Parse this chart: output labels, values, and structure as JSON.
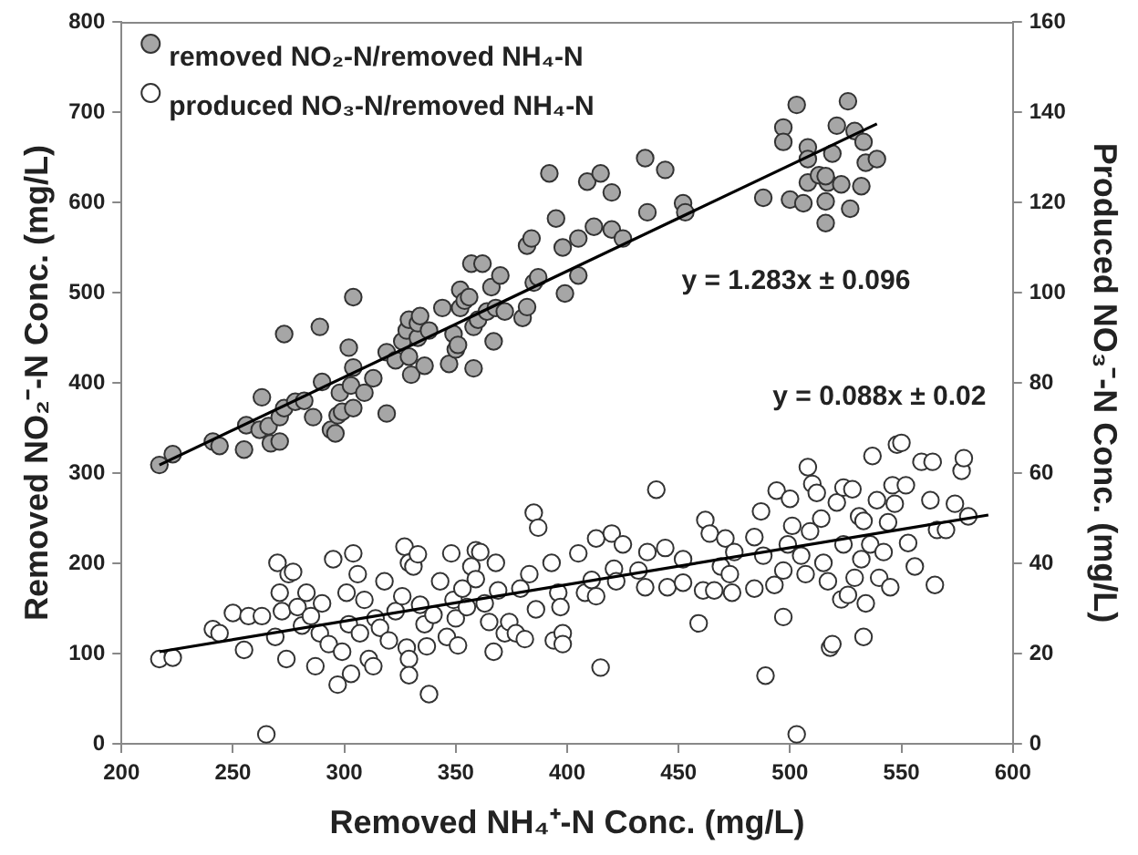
{
  "chart_data": {
    "type": "scatter",
    "xlabel": "Removed NH₄⁺-N Conc. (mg/L)",
    "ylabel": "Removed NO₂⁻-N Conc. (mg/L)",
    "y2label": "Produced NO₃⁻-N Conc. (mg/L)",
    "xlim": [
      200,
      600
    ],
    "xticks": [
      200,
      250,
      300,
      350,
      400,
      450,
      500,
      550,
      600
    ],
    "ylim": [
      0,
      800
    ],
    "yticks": [
      0,
      100,
      200,
      300,
      400,
      500,
      600,
      700,
      800
    ],
    "y2lim": [
      0,
      160
    ],
    "y2ticks": [
      0,
      20,
      40,
      60,
      80,
      100,
      120,
      140,
      160
    ],
    "legend": "top left",
    "marker": "circle",
    "grid": false,
    "annotations": [
      "y = 1.283x ± 0.096",
      "y = 0.088x ± 0.02"
    ],
    "series": [
      {
        "name": "removed NO₂-N/removed NH₄-N",
        "color": "#a6a6a6",
        "x": [
          217,
          223,
          241,
          244,
          256,
          255,
          263,
          262,
          267,
          266,
          271,
          271,
          273,
          273,
          278,
          282,
          286,
          290,
          289,
          294,
          296,
          298,
          297,
          299,
          302,
          303,
          304,
          304,
          304,
          309,
          313,
          319,
          319,
          323,
          326,
          328,
          329,
          329,
          330,
          333,
          333,
          334,
          336,
          338,
          344,
          347,
          349,
          350,
          351,
          352,
          352,
          354,
          356,
          358,
          358,
          357,
          360,
          362,
          364,
          367,
          366,
          368,
          370,
          372,
          380,
          382,
          382,
          384,
          385,
          387,
          392,
          395,
          398,
          399,
          405,
          405,
          409,
          412,
          415,
          420,
          420,
          425,
          435,
          436,
          444,
          452,
          453,
          488,
          497,
          497,
          500,
          503,
          506,
          508,
          508,
          508,
          513,
          516,
          516,
          517,
          519,
          521,
          523,
          526,
          527,
          529,
          532,
          533,
          534,
          539,
          516
        ],
        "values": [
          309,
          321,
          335,
          330,
          353,
          326,
          384,
          348,
          333,
          352,
          335,
          362,
          454,
          372,
          379,
          380,
          362,
          401,
          462,
          348,
          344,
          389,
          364,
          368,
          439,
          397,
          417,
          495,
          372,
          389,
          405,
          366,
          434,
          425,
          446,
          458,
          470,
          429,
          409,
          450,
          466,
          474,
          419,
          458,
          483,
          421,
          454,
          437,
          442,
          483,
          503,
          491,
          495,
          416,
          462,
          532,
          470,
          532,
          479,
          446,
          506,
          483,
          519,
          479,
          472,
          484,
          552,
          560,
          511,
          517,
          632,
          582,
          550,
          499,
          519,
          560,
          623,
          573,
          632,
          611,
          570,
          560,
          649,
          589,
          636,
          599,
          589,
          605,
          683,
          667,
          603,
          708,
          599,
          661,
          648,
          622,
          630,
          601,
          577,
          622,
          654,
          685,
          620,
          712,
          593,
          679,
          618,
          667,
          644,
          648,
          629
        ]
      },
      {
        "name": "produced NO₃-N/removed NH₄-N",
        "color": "#ffffff",
        "axis": "y2",
        "x": [
          217,
          223,
          241,
          244,
          250,
          255,
          257,
          263,
          265,
          269,
          270,
          271,
          272,
          274,
          275,
          277,
          279,
          281,
          283,
          285,
          287,
          289,
          290,
          293,
          295,
          297,
          299,
          301,
          302,
          303,
          304,
          306,
          307,
          309,
          311,
          313,
          314,
          316,
          318,
          320,
          323,
          326,
          327,
          328,
          329,
          329,
          329,
          331,
          333,
          334,
          336,
          337,
          338,
          340,
          343,
          346,
          348,
          349,
          350,
          351,
          353,
          355,
          357,
          359,
          359,
          361,
          363,
          365,
          367,
          368,
          369,
          372,
          374,
          377,
          379,
          381,
          383,
          385,
          386,
          387,
          393,
          394,
          396,
          397,
          398,
          398,
          405,
          408,
          411,
          413,
          413,
          415,
          420,
          421,
          422,
          425,
          432,
          435,
          436,
          440,
          444,
          445,
          452,
          452,
          459,
          461,
          462,
          464,
          466,
          469,
          471,
          473,
          474,
          475,
          484,
          484,
          487,
          488,
          489,
          493,
          494,
          497,
          497,
          499,
          500,
          501,
          503,
          505,
          507,
          508,
          509,
          510,
          512,
          514,
          515,
          517,
          518,
          519,
          521,
          523,
          524,
          524,
          526,
          528,
          529,
          531,
          532,
          533,
          533,
          534,
          536,
          537,
          539,
          540,
          542,
          544,
          545,
          546,
          547,
          548,
          550,
          552,
          553,
          556,
          559,
          563,
          564,
          565,
          566,
          570,
          574,
          577,
          578,
          580
        ],
        "values": [
          18.8,
          19.1,
          25.4,
          24.5,
          29.0,
          20.8,
          28.3,
          28.3,
          2.1,
          23.7,
          40.1,
          33.5,
          29.4,
          18.8,
          37.6,
          38.1,
          30.3,
          26.2,
          33.5,
          28.3,
          17.2,
          24.5,
          31.1,
          22.1,
          40.9,
          13.1,
          20.4,
          33.5,
          26.5,
          15.5,
          42.2,
          37.6,
          24.5,
          31.9,
          18.8,
          17.2,
          27.8,
          25.7,
          36.0,
          22.9,
          29.4,
          32.7,
          43.7,
          21.3,
          40.1,
          18.8,
          15.2,
          39.3,
          42.0,
          30.8,
          26.5,
          21.6,
          11.0,
          28.6,
          36.0,
          23.7,
          42.2,
          31.9,
          27.8,
          21.8,
          34.4,
          30.3,
          39.3,
          42.9,
          36.5,
          42.5,
          31.1,
          27.0,
          20.4,
          40.1,
          34.0,
          24.5,
          27.0,
          24.5,
          34.4,
          23.2,
          37.6,
          51.2,
          29.8,
          47.9,
          40.1,
          22.9,
          33.5,
          30.3,
          24.5,
          22.1,
          42.2,
          33.5,
          36.3,
          32.7,
          45.5,
          16.9,
          46.6,
          38.8,
          36.0,
          44.2,
          38.4,
          34.7,
          42.5,
          56.3,
          43.4,
          34.7,
          40.9,
          35.7,
          26.7,
          34.0,
          49.6,
          46.6,
          34.0,
          39.3,
          45.5,
          37.6,
          33.5,
          42.5,
          45.8,
          34.4,
          51.5,
          41.7,
          15.1,
          35.2,
          56.1,
          38.4,
          28.1,
          44.2,
          54.3,
          48.3,
          2.1,
          41.7,
          37.6,
          61.3,
          47.1,
          57.6,
          55.6,
          49.9,
          40.1,
          36.0,
          21.3,
          22.1,
          53.5,
          32.0,
          56.8,
          44.2,
          33.0,
          56.4,
          36.8,
          50.4,
          40.9,
          23.7,
          49.4,
          31.1,
          44.2,
          63.8,
          54.0,
          36.8,
          42.5,
          49.1,
          34.7,
          57.3,
          53.2,
          66.3,
          66.7,
          57.3,
          44.5,
          39.3,
          62.5,
          54.0,
          62.5,
          35.2,
          47.4,
          47.4,
          53.2,
          60.5,
          63.3,
          50.4
        ]
      },
      {
        "type": "line",
        "marker": "none",
        "color": "#000000",
        "x": [
          217,
          539
        ],
        "values": [
          309,
          687
        ]
      },
      {
        "type": "line",
        "marker": "none",
        "color": "#000000",
        "axis": "y2",
        "x": [
          217,
          589
        ],
        "values": [
          20.4,
          50.7
        ]
      }
    ]
  }
}
